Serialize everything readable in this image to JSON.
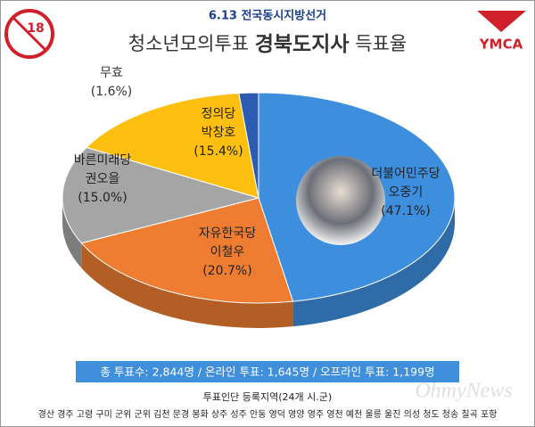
{
  "header": {
    "subtitle": "6.13 전국동시지방선거",
    "title": [
      "청소년모의투표",
      "경북도지사",
      "득표율"
    ],
    "logo_left": "18",
    "logo_right": "YMCA"
  },
  "chart_data": {
    "type": "pie",
    "categories": [
      "더불어민주당",
      "자유한국당",
      "바른미래당",
      "정의당",
      "무효"
    ],
    "candidates": [
      "오중기",
      "이철우",
      "권오을",
      "박창호",
      null
    ],
    "values": [
      47.1,
      20.7,
      15.0,
      15.4,
      1.6
    ],
    "value_labels": [
      "(47.1%)",
      "(20.7%)",
      "(15.0%)",
      "(15.4%)",
      "(1.6%)"
    ],
    "colors": [
      "#3e8ede",
      "#ee7d31",
      "#a5a5a5",
      "#fdbf10",
      "#2b5cb2"
    ]
  },
  "footer": {
    "totals": "총 투표수: 2,844명 / 온라인 투표: 1,645명 / 오프라인 투표: 1,199명",
    "regions_title": "투표인단 등록지역(24개 시.군)",
    "regions": "경산 경주 고령 구미 군위 군위 김천 문경 봉화 상주 성주 안동 영덕 영양 영주 영천 예천 울릉 울진 의성 청도 청송 칠곡 포항",
    "watermark": "OhmyNews"
  }
}
